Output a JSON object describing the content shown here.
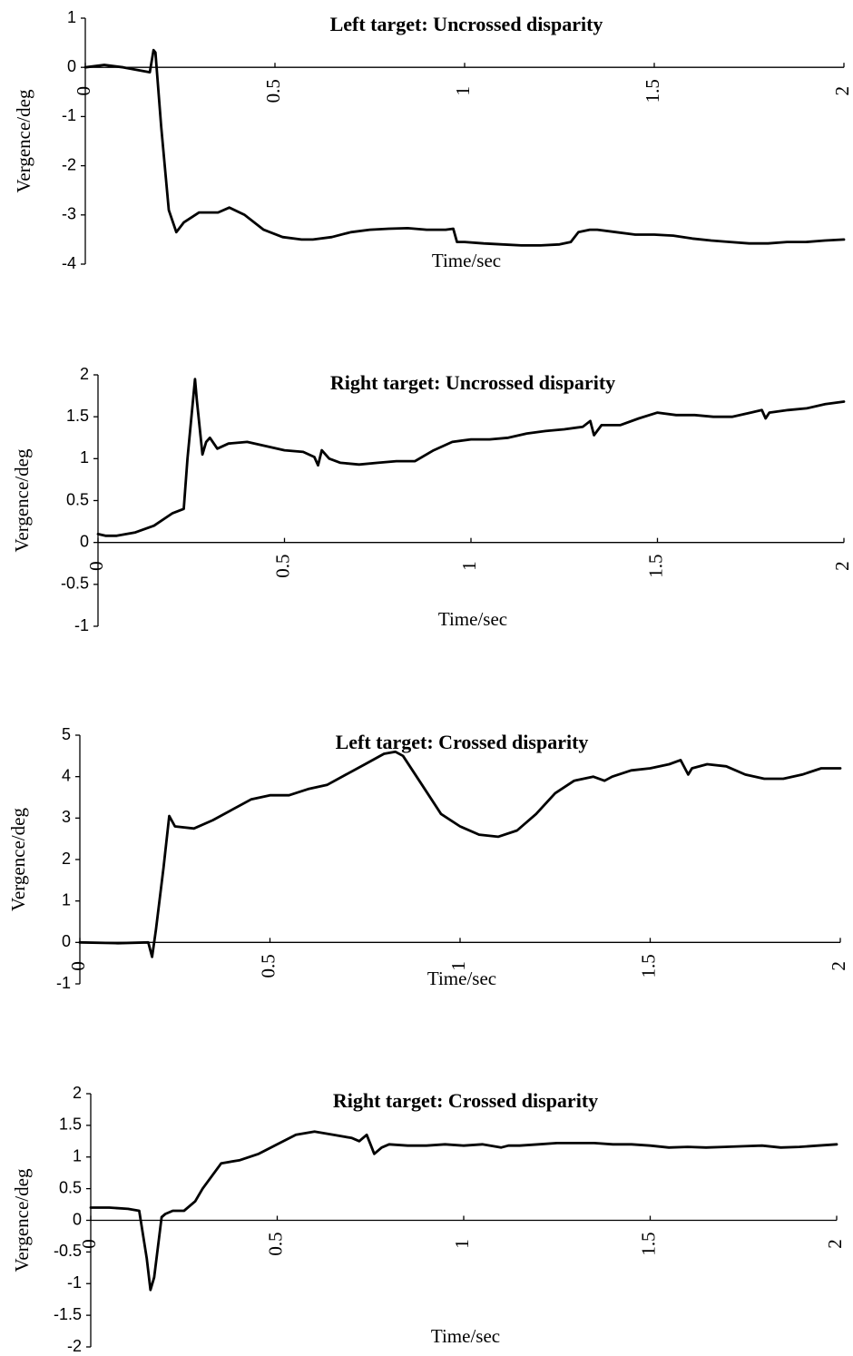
{
  "chart_data": [
    {
      "type": "line",
      "title": "Left target: Uncrossed disparity",
      "xlabel": "Time/sec",
      "ylabel": "Vergence/deg",
      "xlim": [
        0,
        2
      ],
      "ylim": [
        -4,
        1
      ],
      "xticks": [
        "0",
        "0.5",
        "1",
        "1.5",
        "2"
      ],
      "yticks": [
        "1",
        "0",
        "-1",
        "-2",
        "-3",
        "-4"
      ],
      "grid": false,
      "series": [
        {
          "x": [
            0,
            0.05,
            0.1,
            0.17,
            0.18,
            0.185,
            0.2,
            0.22,
            0.24,
            0.26,
            0.3,
            0.35,
            0.38,
            0.42,
            0.47,
            0.52,
            0.57,
            0.6,
            0.65,
            0.7,
            0.75,
            0.8,
            0.85,
            0.9,
            0.95,
            0.97,
            0.98,
            1.0,
            1.05,
            1.1,
            1.15,
            1.2,
            1.25,
            1.28,
            1.3,
            1.33,
            1.35,
            1.4,
            1.45,
            1.5,
            1.55,
            1.6,
            1.65,
            1.7,
            1.75,
            1.8,
            1.85,
            1.9,
            1.95,
            2.0
          ],
          "y": [
            0.0,
            0.05,
            0.0,
            -0.1,
            0.35,
            0.3,
            -1.2,
            -2.9,
            -3.35,
            -3.15,
            -2.95,
            -2.95,
            -2.85,
            -3.0,
            -3.3,
            -3.45,
            -3.5,
            -3.5,
            -3.45,
            -3.35,
            -3.3,
            -3.28,
            -3.27,
            -3.3,
            -3.3,
            -3.28,
            -3.55,
            -3.55,
            -3.58,
            -3.6,
            -3.62,
            -3.62,
            -3.6,
            -3.55,
            -3.35,
            -3.3,
            -3.3,
            -3.35,
            -3.4,
            -3.4,
            -3.42,
            -3.48,
            -3.52,
            -3.55,
            -3.58,
            -3.58,
            -3.55,
            -3.55,
            -3.52,
            -3.5
          ]
        }
      ]
    },
    {
      "type": "line",
      "title": "Right target: Uncrossed disparity",
      "xlabel": "Time/sec",
      "ylabel": "Vergence/deg",
      "xlim": [
        0,
        2
      ],
      "ylim": [
        -1,
        2
      ],
      "xticks": [
        "0",
        "0.5",
        "1",
        "1.5",
        "2"
      ],
      "yticks": [
        "2",
        "1.5",
        "1",
        "0.5",
        "0",
        "-0.5",
        "-1"
      ],
      "grid": false,
      "series": [
        {
          "x": [
            0,
            0.02,
            0.05,
            0.1,
            0.15,
            0.2,
            0.23,
            0.24,
            0.26,
            0.265,
            0.28,
            0.29,
            0.3,
            0.32,
            0.35,
            0.4,
            0.45,
            0.5,
            0.55,
            0.58,
            0.59,
            0.6,
            0.62,
            0.65,
            0.7,
            0.75,
            0.8,
            0.85,
            0.9,
            0.95,
            1.0,
            1.05,
            1.1,
            1.15,
            1.2,
            1.25,
            1.3,
            1.32,
            1.33,
            1.35,
            1.4,
            1.45,
            1.5,
            1.55,
            1.6,
            1.65,
            1.7,
            1.75,
            1.78,
            1.79,
            1.8,
            1.85,
            1.9,
            1.95,
            2.0
          ],
          "y": [
            0.1,
            0.08,
            0.08,
            0.12,
            0.2,
            0.35,
            0.4,
            1.0,
            1.95,
            1.7,
            1.05,
            1.2,
            1.25,
            1.12,
            1.18,
            1.2,
            1.15,
            1.1,
            1.08,
            1.02,
            0.92,
            1.1,
            1.0,
            0.95,
            0.93,
            0.95,
            0.97,
            0.97,
            1.1,
            1.2,
            1.23,
            1.23,
            1.25,
            1.3,
            1.33,
            1.35,
            1.38,
            1.45,
            1.28,
            1.4,
            1.4,
            1.48,
            1.55,
            1.52,
            1.52,
            1.5,
            1.5,
            1.55,
            1.58,
            1.48,
            1.55,
            1.58,
            1.6,
            1.65,
            1.68
          ]
        }
      ]
    },
    {
      "type": "line",
      "title": "Left target: Crossed disparity",
      "xlabel": "Time/sec",
      "ylabel": "Vergence/deg",
      "xlim": [
        0,
        2
      ],
      "ylim": [
        -1,
        5
      ],
      "xticks": [
        "0",
        "0.5",
        "1",
        "1.5",
        "2"
      ],
      "yticks": [
        "5",
        "4",
        "3",
        "2",
        "1",
        "0",
        "-1"
      ],
      "grid": false,
      "series": [
        {
          "x": [
            0,
            0.1,
            0.18,
            0.19,
            0.2,
            0.22,
            0.235,
            0.25,
            0.3,
            0.35,
            0.4,
            0.45,
            0.5,
            0.55,
            0.6,
            0.65,
            0.7,
            0.75,
            0.8,
            0.83,
            0.85,
            0.9,
            0.95,
            1.0,
            1.05,
            1.1,
            1.15,
            1.2,
            1.25,
            1.3,
            1.35,
            1.38,
            1.4,
            1.45,
            1.5,
            1.55,
            1.58,
            1.6,
            1.61,
            1.65,
            1.7,
            1.75,
            1.8,
            1.85,
            1.9,
            1.95,
            2.0
          ],
          "y": [
            0.0,
            -0.02,
            0.0,
            -0.35,
            0.3,
            1.8,
            3.05,
            2.8,
            2.75,
            2.95,
            3.2,
            3.45,
            3.55,
            3.55,
            3.7,
            3.8,
            4.05,
            4.3,
            4.55,
            4.6,
            4.5,
            3.8,
            3.1,
            2.8,
            2.6,
            2.55,
            2.7,
            3.1,
            3.6,
            3.9,
            4.0,
            3.9,
            4.0,
            4.15,
            4.2,
            4.3,
            4.4,
            4.05,
            4.2,
            4.3,
            4.25,
            4.05,
            3.95,
            3.95,
            4.05,
            4.2,
            4.2
          ]
        }
      ]
    },
    {
      "type": "line",
      "title": "Right target: Crossed disparity",
      "xlabel": "Time/sec",
      "ylabel": "Vergence/deg",
      "xlim": [
        0,
        2
      ],
      "ylim": [
        -2,
        2
      ],
      "xticks": [
        "0",
        "0.5",
        "1",
        "1.5",
        "2"
      ],
      "yticks": [
        "2",
        "1.5",
        "1",
        "0.5",
        "0",
        "-0.5",
        "-1",
        "-1.5",
        "-2"
      ],
      "grid": false,
      "series": [
        {
          "x": [
            0,
            0.05,
            0.1,
            0.13,
            0.15,
            0.16,
            0.17,
            0.19,
            0.2,
            0.22,
            0.25,
            0.28,
            0.3,
            0.35,
            0.4,
            0.45,
            0.5,
            0.55,
            0.6,
            0.65,
            0.7,
            0.72,
            0.74,
            0.75,
            0.76,
            0.78,
            0.8,
            0.85,
            0.9,
            0.95,
            1.0,
            1.05,
            1.1,
            1.12,
            1.15,
            1.2,
            1.25,
            1.3,
            1.35,
            1.4,
            1.45,
            1.5,
            1.55,
            1.6,
            1.65,
            1.7,
            1.75,
            1.8,
            1.85,
            1.9,
            1.95,
            2.0
          ],
          "y": [
            0.2,
            0.2,
            0.18,
            0.15,
            -0.6,
            -1.1,
            -0.9,
            0.05,
            0.1,
            0.15,
            0.15,
            0.3,
            0.5,
            0.9,
            0.95,
            1.05,
            1.2,
            1.35,
            1.4,
            1.35,
            1.3,
            1.25,
            1.35,
            1.2,
            1.05,
            1.15,
            1.2,
            1.18,
            1.18,
            1.2,
            1.18,
            1.2,
            1.15,
            1.18,
            1.18,
            1.2,
            1.22,
            1.22,
            1.22,
            1.2,
            1.2,
            1.18,
            1.15,
            1.16,
            1.15,
            1.16,
            1.17,
            1.18,
            1.15,
            1.16,
            1.18,
            1.2
          ]
        }
      ]
    }
  ]
}
